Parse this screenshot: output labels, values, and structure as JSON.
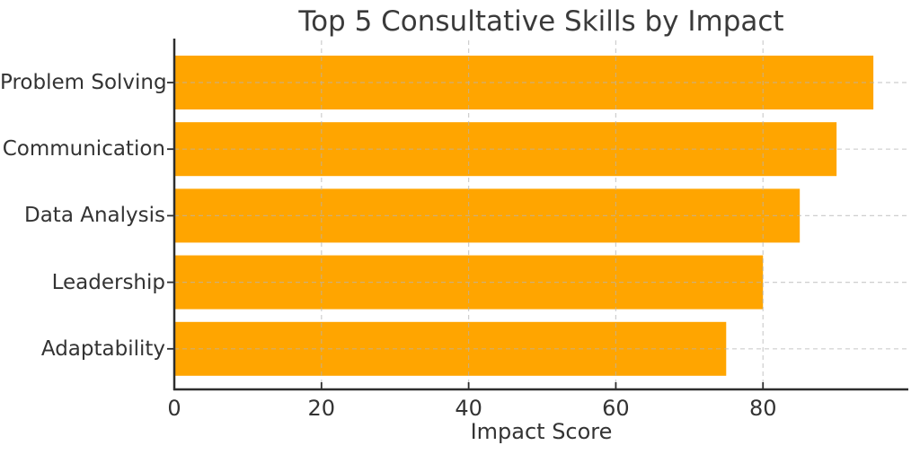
{
  "chart_data": {
    "type": "bar",
    "orientation": "horizontal",
    "title": "Top 5 Consultative Skills by Impact",
    "categories": [
      "Problem Solving",
      "Communication",
      "Data Analysis",
      "Leadership",
      "Adaptability"
    ],
    "values": [
      95,
      90,
      85,
      80,
      75
    ],
    "xlabel": "Impact Score",
    "ylabel": "",
    "xticks": [
      0,
      20,
      40,
      60,
      80
    ],
    "xlim": [
      0,
      99.75
    ],
    "bar_color": "#FFA500",
    "background": "#ffffff",
    "text_color": "#333333",
    "spine_color": "#2e2e2e",
    "grid": {
      "visible": true,
      "style": "dashed",
      "color": "#b4b4b4",
      "opacity": 0.65,
      "above_bars": true
    },
    "legend": null,
    "spines": {
      "left": true,
      "bottom": true,
      "top": false,
      "right": false
    }
  }
}
